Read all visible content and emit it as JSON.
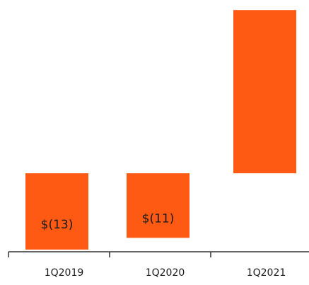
{
  "chart_data": {
    "type": "bar",
    "categories": [
      "1Q2019",
      "1Q2020",
      "1Q2021"
    ],
    "values": [
      -13,
      -11,
      26
    ],
    "data_labels": [
      "$(13)",
      "$(11)",
      ""
    ],
    "title": "",
    "xlabel": "",
    "ylabel": "",
    "ylim": [
      -14,
      29
    ],
    "grid": false,
    "legend": "none",
    "bar_color": "#ff5a14",
    "axis_color": "#333333",
    "label_color": "#1a1a1a"
  }
}
